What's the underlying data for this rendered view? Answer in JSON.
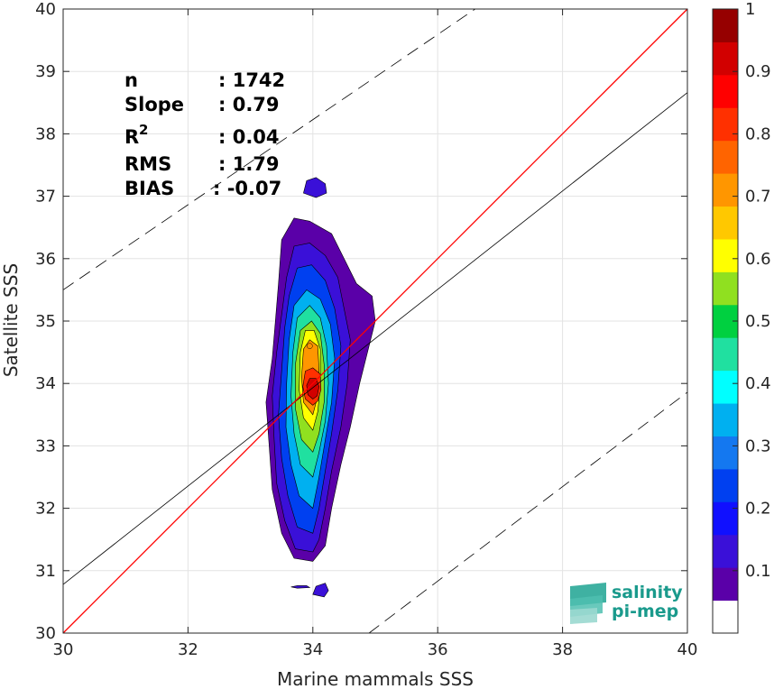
{
  "chart_data": {
    "type": "heatmap",
    "xlabel": "Marine mammals SSS",
    "ylabel": "Satellite SSS",
    "xlim": [
      30,
      40
    ],
    "ylim": [
      30,
      40
    ],
    "x_ticks": [
      30,
      32,
      34,
      36,
      38,
      40
    ],
    "y_ticks": [
      30,
      31,
      32,
      33,
      34,
      35,
      36,
      37,
      38,
      39,
      40
    ],
    "grid": true,
    "colorbar": {
      "range": [
        0,
        1
      ],
      "ticks": [
        0.1,
        0.2,
        0.3,
        0.4,
        0.5,
        0.6,
        0.7,
        0.8,
        0.9,
        1
      ],
      "tick_labels": [
        "0.1",
        "0.2",
        "0.3",
        "0.4",
        "0.5",
        "0.6",
        "0.7",
        "0.8",
        "0.9",
        "1"
      ],
      "colors": [
        "#ffffff",
        "#5a00a8",
        "#3a10d8",
        "#1010ff",
        "#0040f0",
        "#1478f0",
        "#00b0f0",
        "#00ffff",
        "#20e0a0",
        "#00d040",
        "#90e020",
        "#ffff00",
        "#ffc800",
        "#ff9600",
        "#ff6400",
        "#ff3000",
        "#ff0000",
        "#d20000",
        "#960000"
      ]
    },
    "stats": {
      "n": {
        "label": "n",
        "value": ": 1742"
      },
      "slope": {
        "label": "Slope",
        "value": ": 0.79"
      },
      "r2": {
        "label": "R",
        "sup": "2",
        "value": ": 0.04"
      },
      "rms": {
        "label": "RMS",
        "value": ": 1.79"
      },
      "bias": {
        "label": "BIAS",
        "value": ": -0.07"
      }
    },
    "lines": {
      "identity": {
        "x": [
          30,
          40
        ],
        "y": [
          30,
          40
        ],
        "color": "#ff0000"
      },
      "fit": {
        "x": [
          30,
          40
        ],
        "y": [
          30.78,
          38.66
        ],
        "color": "#000000"
      },
      "upper_dashed": {
        "x": [
          30,
          36.6
        ],
        "y": [
          35.5,
          40
        ],
        "color": "#000000"
      },
      "lower_dashed": {
        "x": [
          34.9,
          40
        ],
        "y": [
          30,
          33.86
        ],
        "color": "#000000"
      }
    },
    "density": {
      "center_x": 34.0,
      "levels": [
        {
          "level": 0.05,
          "color": "#5a00a8",
          "points": [
            [
              34.0,
              31.15
            ],
            [
              33.7,
              31.2
            ],
            [
              33.5,
              31.6
            ],
            [
              33.35,
              32.3
            ],
            [
              33.3,
              33.0
            ],
            [
              33.25,
              33.7
            ],
            [
              33.35,
              34.4
            ],
            [
              33.4,
              35.0
            ],
            [
              33.45,
              35.6
            ],
            [
              33.5,
              36.3
            ],
            [
              33.7,
              36.65
            ],
            [
              33.95,
              36.6
            ],
            [
              34.3,
              36.4
            ],
            [
              34.5,
              36.0
            ],
            [
              34.7,
              35.6
            ],
            [
              34.95,
              35.4
            ],
            [
              35.0,
              35.0
            ],
            [
              34.9,
              34.6
            ],
            [
              34.75,
              34.0
            ],
            [
              34.6,
              33.3
            ],
            [
              34.45,
              32.7
            ],
            [
              34.3,
              32.0
            ],
            [
              34.2,
              31.4
            ]
          ]
        },
        {
          "level": 0.15,
          "color": "#3a10d8",
          "points": [
            [
              34.0,
              31.3
            ],
            [
              33.72,
              31.35
            ],
            [
              33.55,
              31.8
            ],
            [
              33.42,
              32.4
            ],
            [
              33.38,
              33.1
            ],
            [
              33.35,
              33.8
            ],
            [
              33.42,
              34.5
            ],
            [
              33.5,
              35.1
            ],
            [
              33.58,
              35.7
            ],
            [
              33.7,
              36.2
            ],
            [
              33.95,
              36.25
            ],
            [
              34.2,
              36.05
            ],
            [
              34.4,
              35.7
            ],
            [
              34.5,
              35.2
            ],
            [
              34.6,
              34.7
            ],
            [
              34.55,
              34.0
            ],
            [
              34.45,
              33.3
            ],
            [
              34.3,
              32.6
            ],
            [
              34.2,
              32.0
            ],
            [
              34.1,
              31.5
            ]
          ]
        },
        {
          "level": 0.25,
          "color": "#0040f0",
          "points": [
            [
              34.0,
              31.6
            ],
            [
              33.75,
              31.7
            ],
            [
              33.6,
              32.2
            ],
            [
              33.5,
              32.8
            ],
            [
              33.45,
              33.5
            ],
            [
              33.5,
              34.2
            ],
            [
              33.55,
              34.9
            ],
            [
              33.62,
              35.4
            ],
            [
              33.75,
              35.85
            ],
            [
              33.98,
              35.9
            ],
            [
              34.2,
              35.65
            ],
            [
              34.35,
              35.2
            ],
            [
              34.45,
              34.6
            ],
            [
              34.4,
              33.9
            ],
            [
              34.3,
              33.2
            ],
            [
              34.2,
              32.6
            ],
            [
              34.1,
              32.0
            ]
          ]
        },
        {
          "level": 0.35,
          "color": "#00b0f0",
          "points": [
            [
              34.0,
              32.0
            ],
            [
              33.78,
              32.2
            ],
            [
              33.65,
              32.7
            ],
            [
              33.57,
              33.3
            ],
            [
              33.58,
              34.0
            ],
            [
              33.62,
              34.7
            ],
            [
              33.7,
              35.25
            ],
            [
              33.9,
              35.5
            ],
            [
              34.12,
              35.35
            ],
            [
              34.28,
              34.95
            ],
            [
              34.35,
              34.4
            ],
            [
              34.3,
              33.7
            ],
            [
              34.2,
              33.1
            ],
            [
              34.1,
              32.5
            ]
          ]
        },
        {
          "level": 0.45,
          "color": "#20e0a0",
          "points": [
            [
              34.0,
              32.5
            ],
            [
              33.8,
              32.7
            ],
            [
              33.7,
              33.2
            ],
            [
              33.65,
              33.8
            ],
            [
              33.68,
              34.5
            ],
            [
              33.75,
              35.05
            ],
            [
              33.95,
              35.25
            ],
            [
              34.12,
              35.05
            ],
            [
              34.22,
              34.6
            ],
            [
              34.25,
              34.0
            ],
            [
              34.2,
              33.4
            ],
            [
              34.1,
              32.9
            ]
          ]
        },
        {
          "level": 0.55,
          "color": "#90e020",
          "points": [
            [
              34.0,
              32.9
            ],
            [
              33.82,
              33.1
            ],
            [
              33.72,
              33.6
            ],
            [
              33.72,
              34.3
            ],
            [
              33.8,
              34.85
            ],
            [
              33.98,
              35.0
            ],
            [
              34.12,
              34.8
            ],
            [
              34.18,
              34.3
            ],
            [
              34.18,
              33.7
            ],
            [
              34.1,
              33.2
            ]
          ]
        },
        {
          "level": 0.65,
          "color": "#ffff00",
          "points": [
            [
              34.0,
              33.25
            ],
            [
              33.85,
              33.45
            ],
            [
              33.78,
              33.9
            ],
            [
              33.8,
              34.5
            ],
            [
              33.88,
              34.85
            ],
            [
              34.02,
              34.85
            ],
            [
              34.12,
              34.55
            ],
            [
              34.12,
              34.0
            ],
            [
              34.08,
              33.55
            ]
          ]
        },
        {
          "level": 0.75,
          "color": "#ff9600",
          "points": [
            [
              34.0,
              33.5
            ],
            [
              33.85,
              33.7
            ],
            [
              33.82,
              34.1
            ],
            [
              33.85,
              34.55
            ],
            [
              33.95,
              34.7
            ],
            [
              34.08,
              34.6
            ],
            [
              34.1,
              34.2
            ],
            [
              34.08,
              33.8
            ]
          ]
        },
        {
          "level": 0.85,
          "color": "#ff3000",
          "points": [
            [
              34.0,
              33.65
            ],
            [
              33.88,
              33.75
            ],
            [
              33.84,
              33.95
            ],
            [
              33.88,
              34.2
            ],
            [
              34.0,
              34.25
            ],
            [
              34.12,
              34.15
            ],
            [
              34.13,
              33.9
            ],
            [
              34.08,
              33.72
            ]
          ]
        },
        {
          "level": 0.95,
          "color": "#d20000",
          "points": [
            [
              34.0,
              33.75
            ],
            [
              33.92,
              33.82
            ],
            [
              33.9,
              33.97
            ],
            [
              33.95,
              34.08
            ],
            [
              34.05,
              34.08
            ],
            [
              34.1,
              33.95
            ],
            [
              34.07,
              33.8
            ]
          ]
        }
      ],
      "islands": [
        {
          "color": "#3a10d8",
          "points": [
            [
              33.85,
              37.05
            ],
            [
              33.9,
              37.25
            ],
            [
              34.05,
              37.3
            ],
            [
              34.2,
              37.2
            ],
            [
              34.22,
              37.05
            ],
            [
              34.05,
              36.98
            ]
          ]
        },
        {
          "color": "#3a10d8",
          "points": [
            [
              34.0,
              30.62
            ],
            [
              34.05,
              30.75
            ],
            [
              34.2,
              30.8
            ],
            [
              34.25,
              30.68
            ],
            [
              34.18,
              30.58
            ]
          ]
        },
        {
          "color": "#3a10d8",
          "points": [
            [
              33.65,
              30.74
            ],
            [
              33.75,
              30.76
            ],
            [
              33.9,
              30.76
            ],
            [
              33.95,
              30.73
            ],
            [
              33.75,
              30.72
            ]
          ]
        }
      ]
    }
  },
  "logo": {
    "line1": "salinity",
    "line2": "pi-mep"
  }
}
